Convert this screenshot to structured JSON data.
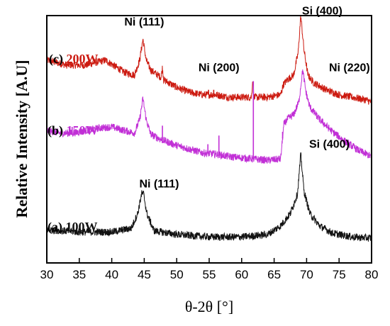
{
  "chart_data": {
    "type": "line",
    "xlabel": "θ-2θ [°]",
    "ylabel": "Relative Intensity [A.U]",
    "xlim": [
      30,
      80
    ],
    "xticks": [
      30,
      35,
      40,
      45,
      50,
      55,
      60,
      65,
      70,
      75,
      80
    ],
    "grid": false,
    "series": [
      {
        "name": "(c) 200W",
        "prefix": "(c) ",
        "power": "200W",
        "color": "#cc1a10",
        "points": [
          [
            30,
            0.82
          ],
          [
            33,
            0.8
          ],
          [
            36,
            0.8
          ],
          [
            39,
            0.82
          ],
          [
            42,
            0.77
          ],
          [
            43.5,
            0.76
          ],
          [
            44.3,
            0.82
          ],
          [
            44.8,
            0.905
          ],
          [
            45.3,
            0.82
          ],
          [
            46,
            0.78
          ],
          [
            47.6,
            0.75
          ],
          [
            47.8,
            0.79
          ],
          [
            48,
            0.74
          ],
          [
            50,
            0.71
          ],
          [
            52,
            0.69
          ],
          [
            54,
            0.68
          ],
          [
            55,
            0.68
          ],
          [
            56,
            0.68
          ],
          [
            58,
            0.67
          ],
          [
            61.5,
            0.67
          ],
          [
            61.7,
            0.74
          ],
          [
            61.9,
            0.67
          ],
          [
            64,
            0.67
          ],
          [
            66,
            0.68
          ],
          [
            66.4,
            0.72
          ],
          [
            67,
            0.74
          ],
          [
            68,
            0.76
          ],
          [
            68.7,
            0.85
          ],
          [
            69.1,
            1.0
          ],
          [
            69.6,
            0.86
          ],
          [
            70.2,
            0.76
          ],
          [
            71,
            0.73
          ],
          [
            73,
            0.7
          ],
          [
            75,
            0.68
          ],
          [
            77,
            0.67
          ],
          [
            79,
            0.66
          ],
          [
            80,
            0.65
          ]
        ],
        "spikes": [
          [
            54.9,
            0.7
          ],
          [
            55.7,
            0.7
          ]
        ]
      },
      {
        "name": "(b) 150W",
        "prefix": "(b) ",
        "power": "150W",
        "color": "#c12fd6",
        "points": [
          [
            30,
            0.535
          ],
          [
            32,
            0.525
          ],
          [
            34,
            0.525
          ],
          [
            36,
            0.535
          ],
          [
            38,
            0.545
          ],
          [
            40,
            0.55
          ],
          [
            42,
            0.535
          ],
          [
            43.5,
            0.525
          ],
          [
            44.3,
            0.58
          ],
          [
            44.8,
            0.665
          ],
          [
            45.3,
            0.58
          ],
          [
            46,
            0.52
          ],
          [
            47.5,
            0.5
          ],
          [
            50,
            0.475
          ],
          [
            52,
            0.46
          ],
          [
            54,
            0.445
          ],
          [
            56,
            0.44
          ],
          [
            58,
            0.43
          ],
          [
            60,
            0.425
          ],
          [
            62,
            0.42
          ],
          [
            64,
            0.415
          ],
          [
            66,
            0.42
          ],
          [
            66.5,
            0.56
          ],
          [
            67,
            0.58
          ],
          [
            68,
            0.6
          ],
          [
            68.8,
            0.65
          ],
          [
            69.4,
            0.78
          ],
          [
            69.9,
            0.69
          ],
          [
            70.5,
            0.63
          ],
          [
            72,
            0.58
          ],
          [
            74,
            0.53
          ],
          [
            76,
            0.49
          ],
          [
            78,
            0.455
          ],
          [
            80,
            0.43
          ]
        ],
        "spikes": [
          [
            33.9,
            0.55
          ],
          [
            47.8,
            0.555
          ],
          [
            54.8,
            0.48
          ],
          [
            56.5,
            0.515
          ],
          [
            61.8,
            0.735
          ],
          [
            66.3,
            0.53
          ]
        ]
      },
      {
        "name": "(a) 100W",
        "prefix": "(a) ",
        "power": "100W",
        "color": "#111111",
        "points": [
          [
            30,
            0.135
          ],
          [
            35,
            0.125
          ],
          [
            40,
            0.125
          ],
          [
            43,
            0.14
          ],
          [
            44,
            0.2
          ],
          [
            44.6,
            0.28
          ],
          [
            44.9,
            0.28
          ],
          [
            45.4,
            0.2
          ],
          [
            46.5,
            0.13
          ],
          [
            50,
            0.115
          ],
          [
            55,
            0.105
          ],
          [
            60,
            0.105
          ],
          [
            64,
            0.115
          ],
          [
            66,
            0.15
          ],
          [
            67.5,
            0.2
          ],
          [
            68.6,
            0.28
          ],
          [
            69.1,
            0.44
          ],
          [
            69.6,
            0.29
          ],
          [
            70.5,
            0.2
          ],
          [
            72,
            0.15
          ],
          [
            74,
            0.12
          ],
          [
            77,
            0.105
          ],
          [
            80,
            0.1
          ]
        ],
        "spikes": []
      }
    ],
    "annotations": [
      {
        "text": "Ni (111)",
        "x": 45.0,
        "y": 0.96
      },
      {
        "text": "Ni (200)",
        "x": 56.5,
        "y": 0.775
      },
      {
        "text": "Si (400)",
        "x": 72.4,
        "y": 1.005
      },
      {
        "text": "Ni (220)",
        "x": 76.6,
        "y": 0.775
      },
      {
        "text": "Ni (111)",
        "x": 47.3,
        "y": 0.305
      },
      {
        "text": "Si (400)",
        "x": 73.5,
        "y": 0.465
      }
    ]
  }
}
